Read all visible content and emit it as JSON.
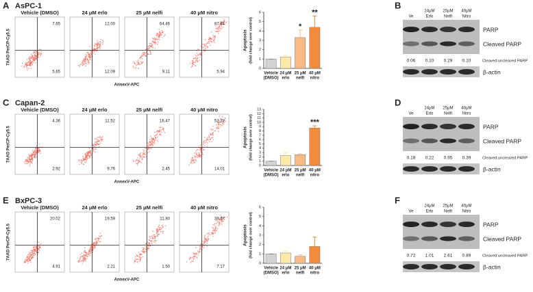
{
  "panels": [
    {
      "label": "A",
      "cell_line": "AsPC-1",
      "ylabel": "7AAD PerCP-Cy5.5",
      "xlabel": "AnnexV-APC",
      "plots": [
        {
          "title": "Vehicle (DMSO)",
          "upper_right": "7.65",
          "lower_right": "5.65"
        },
        {
          "title": "24 μM erlo",
          "upper_right": "12.00",
          "lower_right": "12.09"
        },
        {
          "title": "25 μM nelfi",
          "upper_right": "64.46",
          "lower_right": "9.11"
        },
        {
          "title": "40 μM nitro",
          "upper_right": "87.84",
          "lower_right": "5.94"
        }
      ]
    },
    {
      "label": "C",
      "cell_line": "Capan-2",
      "ylabel": "7AAD PerCP-Cy5.5",
      "xlabel": "AnnexV-APC",
      "plots": [
        {
          "title": "Vehicle (DMSO)",
          "upper_right": "4.36",
          "lower_right": "2.92"
        },
        {
          "title": "24 μM erlo",
          "upper_right": "11.52",
          "lower_right": "9.76"
        },
        {
          "title": "25 μM nelfi",
          "upper_right": "16.47",
          "lower_right": "2.45"
        },
        {
          "title": "40 μM nitro",
          "upper_right": "52.22",
          "lower_right": "14.01"
        }
      ]
    },
    {
      "label": "E",
      "cell_line": "BxPC-3",
      "ylabel": "7AAD PerCP-Cy5.5",
      "xlabel": "AnnexV-APC",
      "plots": [
        {
          "title": "Vehicle (DMSO)",
          "upper_right": "20.02",
          "lower_right": "4.91"
        },
        {
          "title": "24 μM erlo",
          "upper_right": "19.59",
          "lower_right": "2.21"
        },
        {
          "title": "25 μM nelfi",
          "upper_right": "11.80",
          "lower_right": "1.50"
        },
        {
          "title": "40 μM nitro",
          "upper_right": "39.67",
          "lower_right": "7.17"
        }
      ]
    }
  ],
  "blots": [
    {
      "label": "B",
      "lanes": [
        [
          "Ve"
        ],
        [
          "24μM",
          "Erlo"
        ],
        [
          "25μM",
          "Nelfi"
        ],
        [
          "40μM",
          "Nitro"
        ]
      ],
      "bands": [
        "PARP",
        "Cleaved PARP"
      ],
      "ratios": [
        "0.06",
        "0.10",
        "0.29",
        "0.10"
      ],
      "ratio_label": "Cleaved:uncleaved PARP",
      "loading": "β-actin"
    },
    {
      "label": "D",
      "lanes": [
        [
          "Ve"
        ],
        [
          "24μM",
          "Erlo"
        ],
        [
          "25μM",
          "Nelfi"
        ],
        [
          "40μM",
          "Nitro"
        ]
      ],
      "bands": [
        "PARP",
        "Cleaved PARP"
      ],
      "ratios": [
        "0.18",
        "0.22",
        "0.95",
        "0.39"
      ],
      "ratio_label": "Cleaved:uncleaved PARP",
      "loading": "β-actin"
    },
    {
      "label": "F",
      "lanes": [
        [
          "Ve"
        ],
        [
          "24μM",
          "Erlo"
        ],
        [
          "25μM",
          "Nelfi"
        ],
        [
          "40μM",
          "Nitro"
        ]
      ],
      "bands": [
        "PARP",
        "Cleaved PARP"
      ],
      "ratios": [
        "0.72",
        "1.01",
        "2.61",
        "0.89"
      ],
      "ratio_label": "Cleaved:uncleaved PARP",
      "loading": "β-actin"
    }
  ],
  "chart_data": [
    {
      "type": "bar",
      "ylabel": "Apoptosis",
      "ylabel_sub": "(fold change over control)",
      "categories": [
        [
          "Vehicle",
          "(DMSO)"
        ],
        [
          "24 μM",
          "erlo"
        ],
        [
          "25 μM",
          "nelfi"
        ],
        [
          "40 μM",
          "nitro"
        ]
      ],
      "values": [
        1,
        1.2,
        3.3,
        4.4
      ],
      "errors": [
        0,
        0.2,
        0.8,
        1.2
      ],
      "colors": [
        "#d3d3d3",
        "#fde9a9",
        "#f9bb86",
        "#f28c3a"
      ],
      "significance": [
        {
          "category": 2,
          "text": "*"
        },
        {
          "category": 3,
          "text": "**"
        }
      ],
      "ylim": [
        0,
        6
      ],
      "yticks": [
        0,
        1,
        2,
        3,
        4,
        5,
        6
      ]
    },
    {
      "type": "bar",
      "ylabel": "Apoptosis",
      "ylabel_sub": "(fold change over control)",
      "categories": [
        [
          "Vehicle",
          "(DMSO)"
        ],
        [
          "24 μM",
          "erlo"
        ],
        [
          "25 μM",
          "nelfi"
        ],
        [
          "40 μM",
          "nitro"
        ]
      ],
      "values": [
        1,
        2.3,
        2.5,
        8.7
      ],
      "errors": [
        0,
        0.8,
        0.2,
        0.5
      ],
      "colors": [
        "#d3d3d3",
        "#fde9a9",
        "#f9bb86",
        "#f28c3a"
      ],
      "significance": [
        {
          "category": 3,
          "text": "***"
        }
      ],
      "ylim": [
        0,
        13
      ],
      "yticks": [
        0,
        1,
        2,
        3,
        4,
        5,
        6,
        7,
        8,
        9,
        10,
        11,
        12,
        13
      ]
    },
    {
      "type": "bar",
      "ylabel": "Apoptosis",
      "ylabel_sub": "(fold change over control)",
      "categories": [
        [
          "Vehicle",
          "(DMSO)"
        ],
        [
          "24 μM",
          "erlo"
        ],
        [
          "25 μM",
          "nelfi"
        ],
        [
          "40 μM",
          "nitro"
        ]
      ],
      "values": [
        1,
        1.1,
        0.75,
        1.8
      ],
      "errors": [
        0,
        0.2,
        0.15,
        1.0
      ],
      "colors": [
        "#d3d3d3",
        "#fde9a9",
        "#f9bb86",
        "#f28c3a"
      ],
      "significance": [],
      "ylim": [
        0,
        6
      ],
      "yticks": [
        0,
        1,
        2,
        3,
        4,
        5,
        6
      ]
    }
  ]
}
